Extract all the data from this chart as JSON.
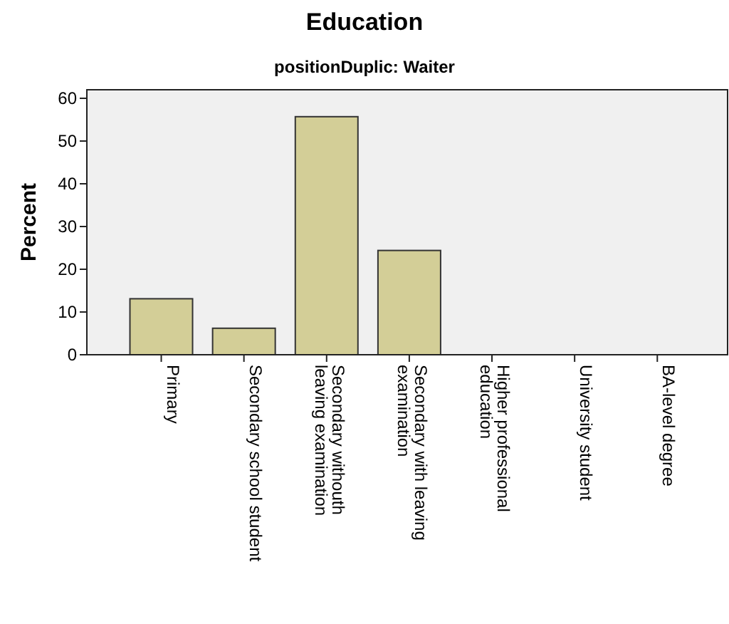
{
  "chart_data": {
    "type": "bar",
    "title": "Education",
    "subtitle": "positionDuplic: Waiter",
    "ylabel": "Percent",
    "categories": [
      "Primary",
      "Secondary school student",
      "Secondary withouth leaving examination",
      "Secondary with leaving examination",
      "Higher professional education",
      "University student",
      "BA-level degree"
    ],
    "values": [
      13.1,
      6.2,
      55.7,
      24.4,
      0,
      0,
      0
    ],
    "color": "#d3ce97",
    "ylim": [
      0,
      62
    ],
    "yticks": [
      0,
      10,
      20,
      30,
      40,
      50,
      60
    ]
  }
}
